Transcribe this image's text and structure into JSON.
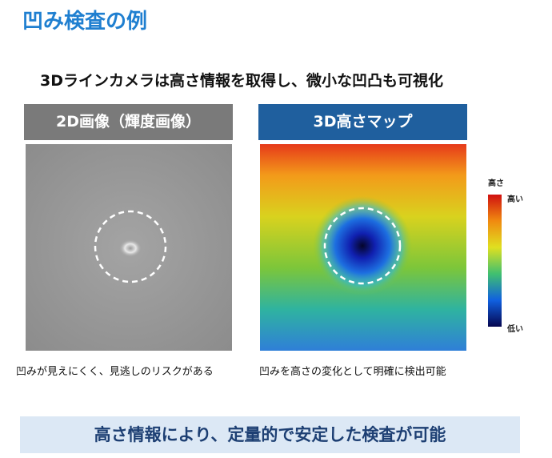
{
  "title": "凹み検査の例",
  "subtitle": "3Dラインカメラは高さ情報を取得し、微小な凹凸も可視化",
  "panels": [
    {
      "header": "2D画像（輝度画像）",
      "caption": "凹みが見えにくく、見逃しのリスクがある"
    },
    {
      "header": "3D高さマップ",
      "caption": "凹みを高さの変化として明確に検出可能"
    }
  ],
  "colorbar": {
    "title": "高さ",
    "high": "高い",
    "low": "低い"
  },
  "footer": "高さ情報により、定量的で安定した検査が可能"
}
